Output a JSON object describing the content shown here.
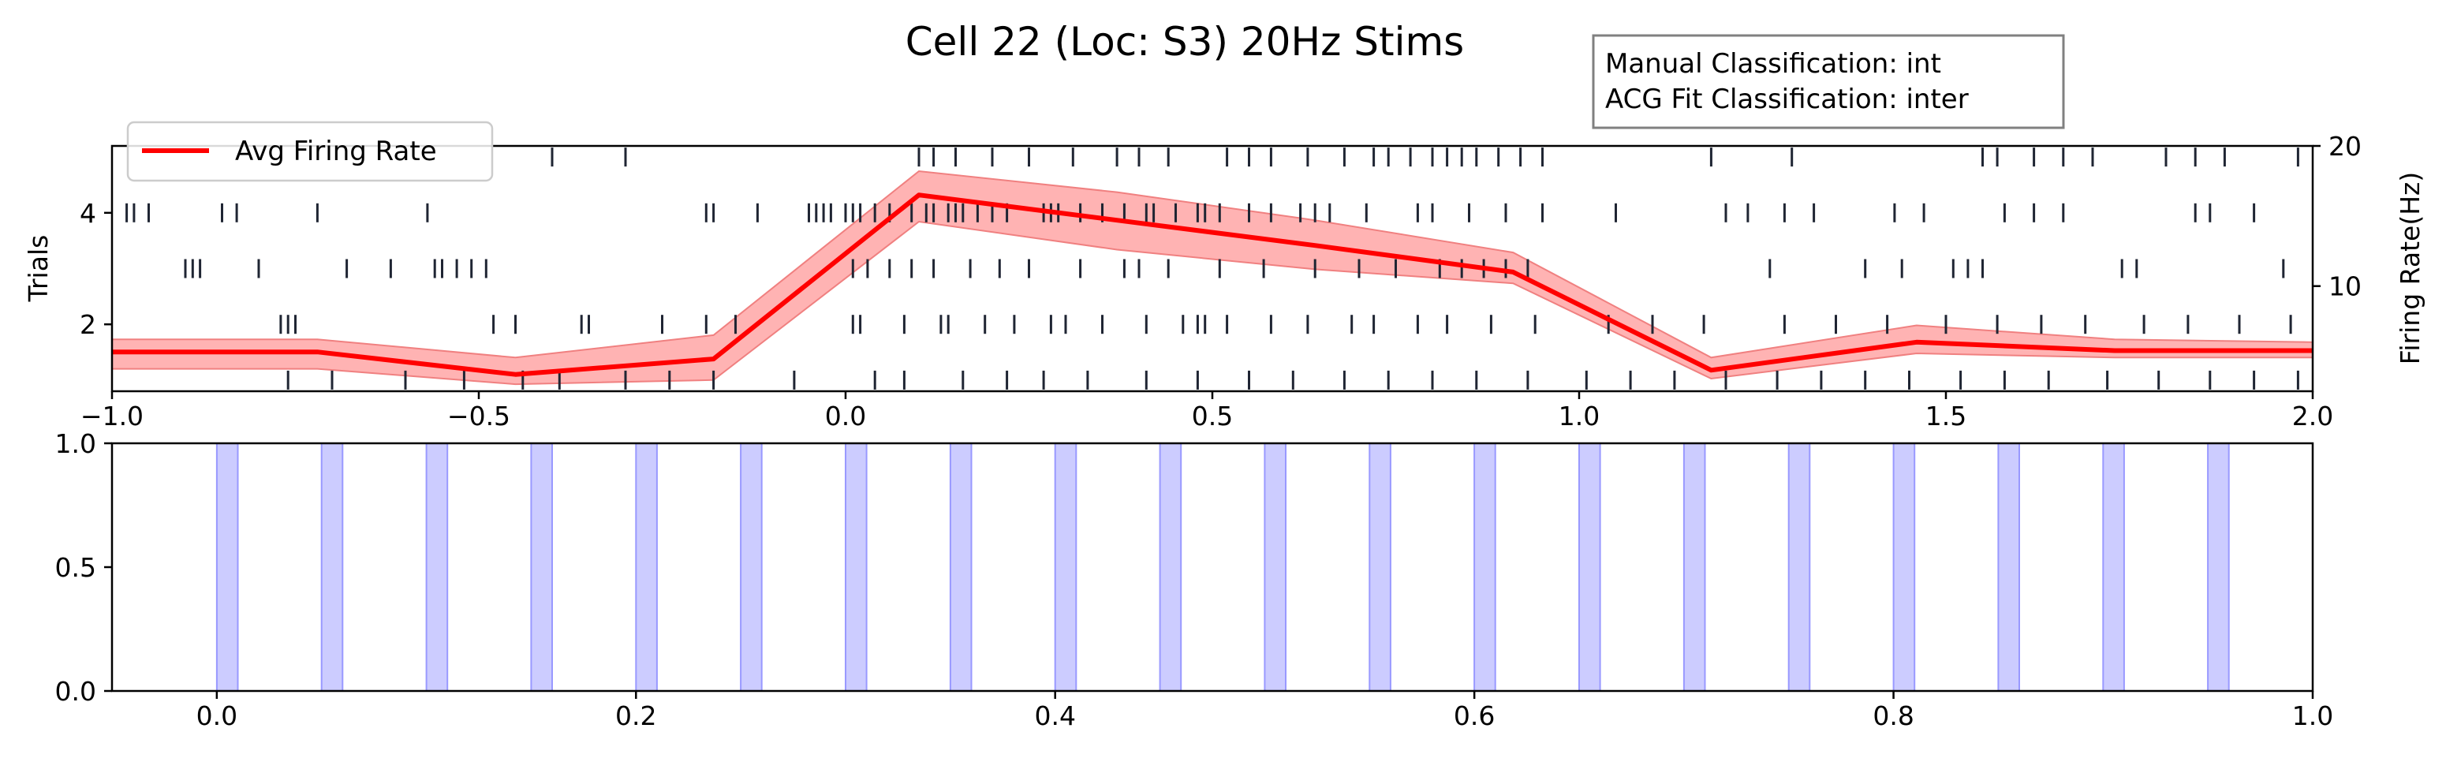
{
  "chart_data": [
    {
      "type": "scatter",
      "title": "Cell 22 (Loc: S3) 20Hz Stims",
      "info_box": [
        "Manual Classification: int",
        "ACG Fit Classification: inter"
      ],
      "ylabel": "Trials",
      "ylabel_right": "Firing Rate(Hz)",
      "xlim": [
        -1.0,
        2.0
      ],
      "ylim": [
        0.8,
        5.2
      ],
      "ylim_right": [
        2.5,
        20
      ],
      "x_ticks": [
        "−1.0",
        "−0.5",
        "0.0",
        "0.5",
        "1.0",
        "1.5",
        "2.0"
      ],
      "y_ticks": [
        "2",
        "4"
      ],
      "y_ticks_right": [
        "10",
        "20"
      ],
      "legend": {
        "label": "Avg Firing Rate",
        "placement": "upper-left"
      },
      "colors": {
        "spikes": "#1f2533",
        "rate_line": "#ff0000",
        "rate_band": "#ff9999"
      },
      "firing_rate": {
        "x": [
          -1.0,
          -0.72,
          -0.45,
          -0.18,
          0.1,
          0.37,
          0.64,
          0.91,
          1.18,
          1.46,
          1.73,
          2.0
        ],
        "mean": [
          5.3,
          5.3,
          3.7,
          4.8,
          16.5,
          14.7,
          12.9,
          11.0,
          4.0,
          6.0,
          5.4,
          5.4
        ],
        "upper": [
          6.2,
          6.2,
          4.9,
          6.5,
          18.2,
          16.7,
          14.7,
          12.4,
          4.9,
          7.2,
          6.2,
          6.0
        ],
        "lower": [
          4.1,
          4.1,
          3.0,
          3.3,
          14.6,
          12.6,
          11.2,
          10.2,
          3.4,
          5.2,
          4.9,
          4.9
        ]
      },
      "trials": [
        {
          "trial": 1,
          "spikes": [
            -0.76,
            -0.7,
            -0.6,
            -0.52,
            -0.44,
            -0.39,
            -0.3,
            -0.24,
            -0.18,
            -0.07,
            0.04,
            0.08,
            0.16,
            0.22,
            0.27,
            0.33,
            0.41,
            0.48,
            0.55,
            0.61,
            0.68,
            0.74,
            0.8,
            0.86,
            0.93,
            1.01,
            1.07,
            1.13,
            1.2,
            1.27,
            1.33,
            1.39,
            1.45,
            1.52,
            1.58,
            1.64,
            1.72,
            1.79,
            1.86,
            1.92,
            1.98
          ]
        },
        {
          "trial": 2,
          "spikes": [
            -0.77,
            -0.76,
            -0.75,
            -0.48,
            -0.45,
            -0.36,
            -0.35,
            -0.25,
            -0.19,
            -0.15,
            0.01,
            0.02,
            0.08,
            0.13,
            0.14,
            0.19,
            0.23,
            0.28,
            0.3,
            0.35,
            0.41,
            0.46,
            0.48,
            0.49,
            0.52,
            0.58,
            0.63,
            0.69,
            0.72,
            0.78,
            0.82,
            0.88,
            0.94,
            1.04,
            1.1,
            1.17,
            1.28,
            1.35,
            1.42,
            1.5,
            1.57,
            1.63,
            1.69,
            1.77,
            1.83,
            1.9,
            1.97
          ]
        },
        {
          "trial": 3,
          "spikes": [
            -0.9,
            -0.89,
            -0.88,
            -0.8,
            -0.68,
            -0.62,
            -0.56,
            -0.55,
            -0.53,
            -0.51,
            -0.49,
            0.01,
            0.03,
            0.06,
            0.09,
            0.12,
            0.17,
            0.21,
            0.25,
            0.32,
            0.38,
            0.4,
            0.44,
            0.51,
            0.57,
            0.64,
            0.7,
            0.75,
            0.81,
            0.84,
            0.87,
            0.9,
            0.93,
            1.26,
            1.39,
            1.44,
            1.51,
            1.53,
            1.55,
            1.74,
            1.76,
            1.96
          ]
        },
        {
          "trial": 4,
          "spikes": [
            -0.98,
            -0.97,
            -0.95,
            -0.85,
            -0.83,
            -0.72,
            -0.57,
            -0.19,
            -0.18,
            -0.12,
            -0.05,
            -0.04,
            -0.03,
            -0.02,
            0.0,
            0.01,
            0.02,
            0.04,
            0.06,
            0.09,
            0.11,
            0.12,
            0.14,
            0.15,
            0.16,
            0.18,
            0.2,
            0.22,
            0.27,
            0.28,
            0.29,
            0.32,
            0.35,
            0.38,
            0.41,
            0.42,
            0.45,
            0.48,
            0.49,
            0.51,
            0.55,
            0.58,
            0.62,
            0.64,
            0.66,
            0.71,
            0.78,
            0.8,
            0.85,
            0.9,
            0.95,
            1.05,
            1.2,
            1.23,
            1.28,
            1.32,
            1.43,
            1.47,
            1.58,
            1.62,
            1.66,
            1.84,
            1.86,
            1.92
          ]
        },
        {
          "trial": 5,
          "spikes": [
            -0.4,
            -0.3,
            0.1,
            0.12,
            0.15,
            0.2,
            0.25,
            0.31,
            0.37,
            0.4,
            0.44,
            0.52,
            0.55,
            0.58,
            0.63,
            0.68,
            0.72,
            0.74,
            0.77,
            0.8,
            0.82,
            0.84,
            0.86,
            0.89,
            0.92,
            0.95,
            1.18,
            1.29,
            1.55,
            1.57,
            1.62,
            1.66,
            1.7,
            1.8,
            1.84,
            1.88,
            1.98
          ]
        }
      ]
    },
    {
      "type": "bar",
      "title": "",
      "xlabel": "",
      "ylabel": "",
      "xlim": [
        -0.05,
        1.0
      ],
      "ylim": [
        0.0,
        1.0
      ],
      "x_ticks": [
        "0.0",
        "0.2",
        "0.4",
        "0.6",
        "0.8",
        "1.0"
      ],
      "y_ticks": [
        "0.0",
        "0.5",
        "1.0"
      ],
      "colors": {
        "stim_fill": "#ccccff",
        "stim_edge": "#9999ff"
      },
      "stim_width": 0.01,
      "stim_onsets": [
        0.0,
        0.05,
        0.1,
        0.15,
        0.2,
        0.25,
        0.3,
        0.35,
        0.4,
        0.45,
        0.5,
        0.55,
        0.6,
        0.65,
        0.7,
        0.75,
        0.8,
        0.85,
        0.9,
        0.95
      ]
    }
  ]
}
